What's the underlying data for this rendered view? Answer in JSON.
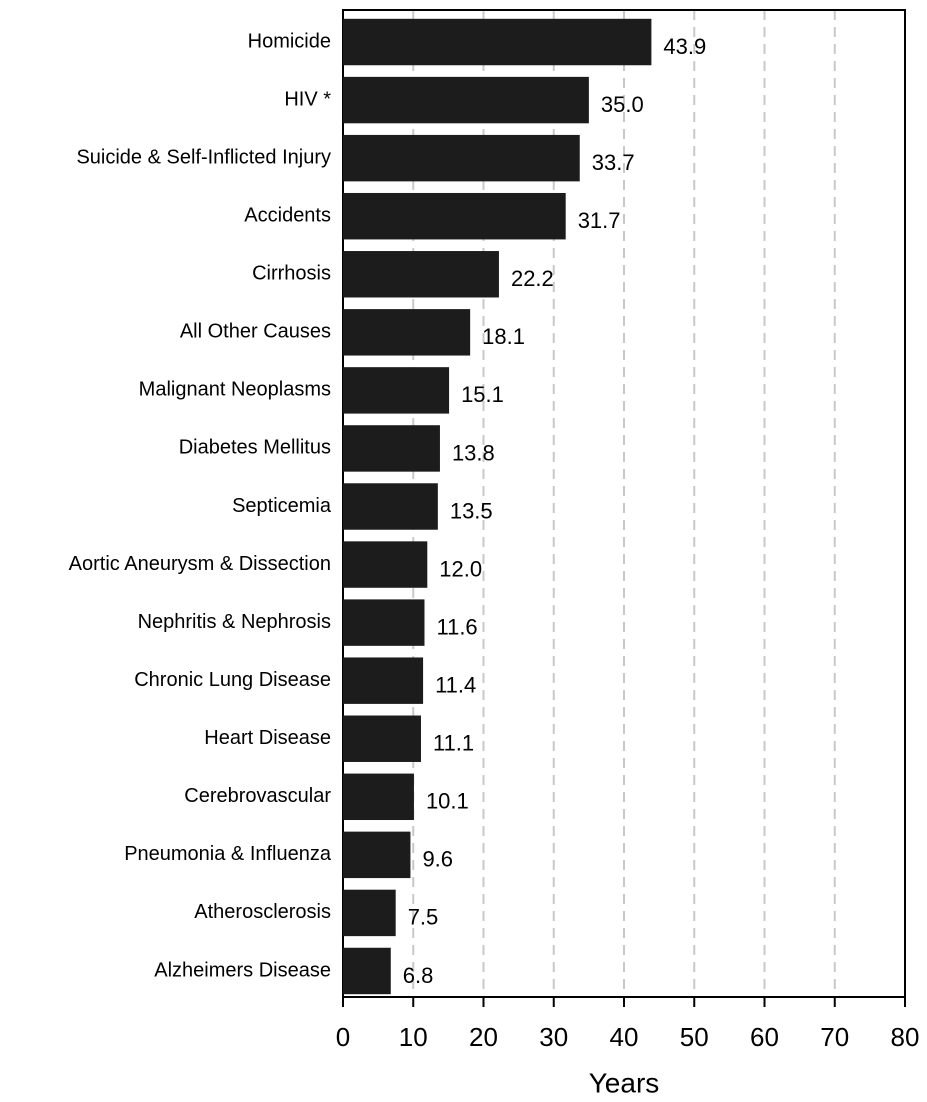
{
  "chart_data": {
    "type": "barh",
    "xlabel": "Years",
    "categories": [
      "Homicide",
      "HIV *",
      "Suicide & Self-Inflicted Injury",
      "Accidents",
      "Cirrhosis",
      "All Other Causes",
      "Malignant Neoplasms",
      "Diabetes Mellitus",
      "Septicemia",
      "Aortic Aneurysm & Dissection",
      "Nephritis & Nephrosis",
      "Chronic Lung Disease",
      "Heart Disease",
      "Cerebrovascular",
      "Pneumonia & Influenza",
      "Atherosclerosis",
      "Alzheimers Disease"
    ],
    "values": [
      43.9,
      35.0,
      33.7,
      31.7,
      22.2,
      18.1,
      15.1,
      13.8,
      13.5,
      12.0,
      11.6,
      11.4,
      11.1,
      10.1,
      9.6,
      7.5,
      6.8
    ],
    "value_labels": [
      "43.9",
      "35.0",
      "33.7",
      "31.7",
      "22.2",
      "18.1",
      "15.1",
      "13.8",
      "13.5",
      "12.0",
      "11.6",
      "11.4",
      "11.1",
      "10.1",
      "9.6",
      "7.5",
      "6.8"
    ],
    "color": "#1c1c1c",
    "xlim": [
      0,
      80
    ],
    "xticks": [
      0,
      10,
      20,
      30,
      40,
      50,
      60,
      70,
      80
    ],
    "grid": true
  }
}
